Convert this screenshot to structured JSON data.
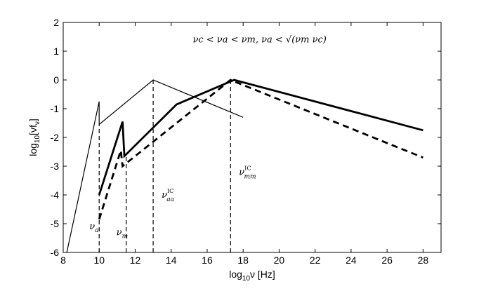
{
  "chart_data": {
    "type": "line",
    "title": "",
    "xlabel": "log10ν [Hz]",
    "ylabel": "log10[νfν]",
    "xlim": [
      8,
      29
    ],
    "ylim": [
      -6,
      2
    ],
    "xticks": [
      8,
      10,
      12,
      14,
      16,
      18,
      20,
      22,
      24,
      26,
      28
    ],
    "yticks": [
      2,
      1,
      0,
      -1,
      -2,
      -3,
      -4,
      -5,
      -6
    ],
    "grid": false,
    "regime_label": "νc < νa < νm, νa < √(νm νc)",
    "series": [
      {
        "style": "thin-solid",
        "x": [
          8.2,
          10.0,
          10.0,
          13.0,
          18.0
        ],
        "y": [
          -6.0,
          -0.75,
          -1.55,
          0.0,
          -1.3
        ]
      },
      {
        "style": "thick-solid",
        "x": [
          10.0,
          11.3,
          11.4,
          14.3,
          17.5,
          28.0
        ],
        "y": [
          -4.0,
          -1.45,
          -2.65,
          -0.85,
          0.0,
          -1.75
        ]
      },
      {
        "style": "thick-dashed",
        "x": [
          10.0,
          11.2,
          11.3,
          17.3,
          28.0
        ],
        "y": [
          -4.85,
          -2.45,
          -3.0,
          0.0,
          -2.7
        ]
      }
    ],
    "markers": [
      {
        "label": "νa",
        "x": 10.0,
        "y_top": -1.55,
        "label_y": -5.2
      },
      {
        "label": "νm",
        "x": 11.5,
        "y_top": -2.65,
        "label_y": -5.4
      },
      {
        "label": "νIC_aa",
        "base": "ν",
        "sup": "IC",
        "sub": "aa",
        "x": 13.0,
        "y_top": 0.0,
        "label_y": -4.1
      },
      {
        "label": "νIC_mm",
        "base": "ν",
        "sup": "IC",
        "sub": "mm",
        "x": 17.3,
        "y_top": 0.0,
        "label_y": -3.3
      }
    ]
  }
}
